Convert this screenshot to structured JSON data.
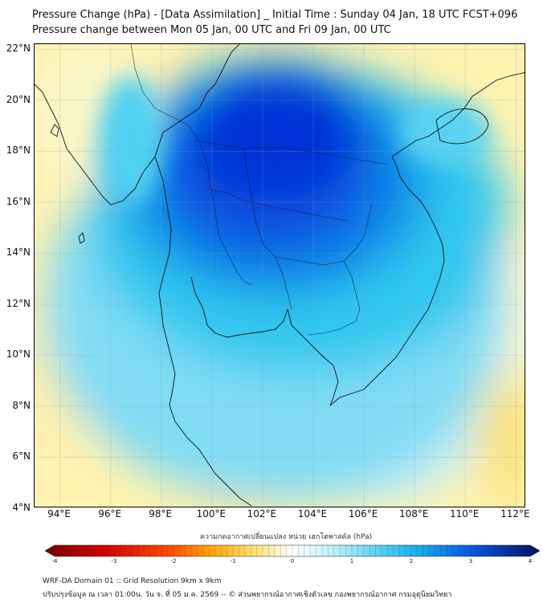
{
  "title": {
    "line1": "Pressure Change (hPa) - [Data Assimilation] _ Initial Time : Sunday 04 Jan, 18 UTC FCST+096",
    "line2": "Pressure change between Mon 05 Jan, 00 UTC and Fri 09 Jan, 00 UTC"
  },
  "map": {
    "lat_labels": [
      "22°N",
      "20°N",
      "18°N",
      "16°N",
      "14°N",
      "12°N",
      "10°N",
      "8°N",
      "6°N",
      "4°N"
    ],
    "lon_labels": [
      "94°E",
      "96°E",
      "98°E",
      "100°E",
      "102°E",
      "104°E",
      "106°E",
      "108°E",
      "110°E",
      "112°E"
    ],
    "lat_range": [
      4,
      22.2
    ],
    "lon_range": [
      93,
      112.4
    ],
    "grid": true
  },
  "colorbar": {
    "label": "ความกดอากาศเปลี่ยนแปลง หน่วย เฮกโตพาสคัล (hPa)",
    "ticks": [
      "-4",
      "-3",
      "-2",
      "-1",
      "0",
      "1",
      "2",
      "3",
      "4"
    ],
    "range": [
      -4,
      4
    ],
    "orientation": "horizontal"
  },
  "footer": {
    "line1": "WRF-DA Domain 01 :: Grid Resolution 9km x 9km",
    "line2": "ปรับปรุงข้อมูล ณ เวลา 01:00น. วัน จ. ที่ 05 ม.ค. 2569 -- © ส่วนพยากรณ์อากาศเชิงตัวเลข กองพยากรณ์อากาศ กรมอุตุนิยมวิทยา"
  }
}
